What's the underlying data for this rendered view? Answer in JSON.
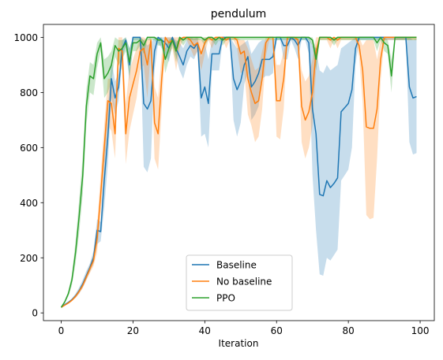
{
  "chart_data": {
    "type": "line",
    "title": "pendulum",
    "xlabel": "Iteration",
    "ylabel": "",
    "xlim": [
      -4.95,
      103.95
    ],
    "ylim": [
      -28,
      1047
    ],
    "xticks": [
      0,
      20,
      40,
      60,
      80,
      100
    ],
    "yticks": [
      0,
      200,
      400,
      600,
      800,
      1000
    ],
    "grid": false,
    "legend_position": "lower center",
    "x": [
      0,
      1,
      2,
      3,
      4,
      5,
      6,
      7,
      8,
      9,
      10,
      11,
      12,
      13,
      14,
      15,
      16,
      17,
      18,
      19,
      20,
      21,
      22,
      23,
      24,
      25,
      26,
      27,
      28,
      29,
      30,
      31,
      32,
      33,
      34,
      35,
      36,
      37,
      38,
      39,
      40,
      41,
      42,
      43,
      44,
      45,
      46,
      47,
      48,
      49,
      50,
      51,
      52,
      53,
      54,
      55,
      56,
      57,
      58,
      59,
      60,
      61,
      62,
      63,
      64,
      65,
      66,
      67,
      68,
      69,
      70,
      71,
      72,
      73,
      74,
      75,
      76,
      77,
      78,
      79,
      80,
      81,
      82,
      83,
      84,
      85,
      86,
      87,
      88,
      89,
      90,
      91,
      92,
      93,
      94,
      95,
      96,
      97,
      98,
      99
    ],
    "series": [
      {
        "name": "Baseline",
        "color": "#1f77b4",
        "values": [
          20,
          30,
          38,
          48,
          62,
          80,
          105,
          135,
          165,
          200,
          300,
          295,
          480,
          640,
          850,
          780,
          820,
          960,
          990,
          900,
          1000,
          1000,
          1000,
          760,
          740,
          770,
          950,
          1000,
          990,
          980,
          960,
          1000,
          960,
          930,
          900,
          950,
          970,
          960,
          980,
          780,
          820,
          760,
          940,
          940,
          940,
          1000,
          1000,
          1000,
          850,
          810,
          840,
          900,
          930,
          820,
          840,
          870,
          920,
          920,
          920,
          930,
          1000,
          1000,
          970,
          970,
          1000,
          990,
          970,
          1000,
          1000,
          980,
          740,
          650,
          430,
          425,
          480,
          455,
          470,
          490,
          730,
          745,
          760,
          810,
          960,
          1000,
          1000,
          1000,
          1000,
          1000,
          1000,
          1000,
          1000,
          1000,
          1000,
          1000,
          1000,
          1000,
          1000,
          820,
          780,
          785
        ],
        "band_low": [
          20,
          28,
          35,
          45,
          55,
          70,
          92,
          120,
          150,
          180,
          250,
          260,
          380,
          540,
          780,
          720,
          770,
          920,
          970,
          840,
          990,
          990,
          990,
          530,
          510,
          560,
          880,
          980,
          960,
          940,
          910,
          980,
          930,
          880,
          850,
          900,
          930,
          920,
          950,
          640,
          650,
          600,
          880,
          880,
          880,
          990,
          990,
          990,
          700,
          640,
          690,
          830,
          870,
          700,
          720,
          750,
          850,
          860,
          860,
          870,
          990,
          990,
          920,
          920,
          990,
          960,
          920,
          990,
          990,
          940,
          500,
          300,
          140,
          135,
          200,
          190,
          210,
          230,
          480,
          500,
          520,
          600,
          900,
          990,
          990,
          990,
          990,
          990,
          990,
          990,
          990,
          990,
          990,
          990,
          990,
          990,
          990,
          620,
          575,
          580
        ],
        "band_high": [
          22,
          32,
          41,
          52,
          70,
          92,
          120,
          152,
          180,
          225,
          340,
          330,
          580,
          740,
          920,
          840,
          870,
          990,
          1000,
          960,
          1000,
          1000,
          1000,
          990,
          970,
          980,
          1000,
          1000,
          1000,
          1000,
          1000,
          1000,
          990,
          980,
          960,
          990,
          1000,
          995,
          1000,
          930,
          980,
          920,
          990,
          990,
          990,
          1000,
          1000,
          1000,
          980,
          960,
          970,
          980,
          990,
          940,
          960,
          980,
          990,
          990,
          990,
          990,
          1000,
          1000,
          1000,
          1000,
          1000,
          1000,
          1000,
          1000,
          1000,
          1000,
          970,
          960,
          880,
          870,
          900,
          880,
          890,
          900,
          960,
          970,
          980,
          990,
          1000,
          1000,
          1000,
          1000,
          1000,
          1000,
          1000,
          1000,
          1000,
          1000,
          1000,
          1000,
          1000,
          1000,
          1000,
          1000,
          990,
          995
        ]
      },
      {
        "name": "No baseline",
        "color": "#ff7f0e",
        "values": [
          20,
          28,
          36,
          46,
          60,
          78,
          100,
          130,
          160,
          190,
          270,
          430,
          600,
          770,
          760,
          650,
          960,
          950,
          650,
          780,
          830,
          880,
          950,
          960,
          900,
          990,
          690,
          650,
          850,
          1000,
          980,
          990,
          950,
          990,
          1000,
          1000,
          990,
          970,
          980,
          940,
          980,
          1000,
          990,
          1000,
          1000,
          1000,
          990,
          1000,
          1000,
          990,
          940,
          950,
          850,
          800,
          760,
          770,
          850,
          980,
          1000,
          1000,
          770,
          770,
          850,
          1000,
          1000,
          1000,
          990,
          750,
          700,
          730,
          800,
          950,
          1000,
          1000,
          1000,
          990,
          1000,
          990,
          1000,
          1000,
          1000,
          1000,
          1000,
          970,
          880,
          675,
          670,
          670,
          740,
          920,
          1000,
          1000,
          1000,
          1000,
          1000,
          1000,
          1000,
          1000,
          1000,
          1000
        ],
        "band_low": [
          20,
          26,
          33,
          42,
          54,
          70,
          90,
          118,
          145,
          170,
          220,
          360,
          520,
          680,
          660,
          560,
          900,
          880,
          540,
          660,
          720,
          780,
          880,
          900,
          780,
          960,
          560,
          520,
          740,
          990,
          940,
          960,
          880,
          960,
          990,
          990,
          960,
          930,
          950,
          880,
          940,
          990,
          960,
          990,
          990,
          990,
          960,
          990,
          990,
          960,
          870,
          880,
          720,
          680,
          620,
          640,
          740,
          930,
          990,
          990,
          640,
          630,
          740,
          990,
          990,
          990,
          960,
          620,
          560,
          600,
          680,
          880,
          990,
          990,
          990,
          960,
          990,
          960,
          990,
          990,
          990,
          990,
          990,
          930,
          760,
          355,
          340,
          345,
          560,
          840,
          990,
          990,
          990,
          990,
          990,
          990,
          990,
          990,
          990,
          990
        ],
        "band_high": [
          22,
          30,
          39,
          50,
          66,
          86,
          110,
          142,
          175,
          210,
          320,
          500,
          680,
          850,
          850,
          750,
          1000,
          1000,
          760,
          880,
          920,
          960,
          1000,
          1000,
          990,
          1000,
          820,
          780,
          940,
          1000,
          1000,
          1000,
          1000,
          1000,
          1000,
          1000,
          1000,
          1000,
          1000,
          990,
          1000,
          1000,
          1000,
          1000,
          1000,
          1000,
          1000,
          1000,
          1000,
          1000,
          990,
          990,
          960,
          920,
          880,
          890,
          950,
          1000,
          1000,
          1000,
          900,
          900,
          950,
          1000,
          1000,
          1000,
          1000,
          880,
          840,
          860,
          920,
          1000,
          1000,
          1000,
          1000,
          1000,
          1000,
          1000,
          1000,
          1000,
          1000,
          1000,
          1000,
          1000,
          970,
          990,
          990,
          990,
          920,
          990,
          1000,
          1000,
          1000,
          1000,
          1000,
          1000,
          1000,
          1000,
          1000,
          1000
        ]
      },
      {
        "name": "PPO",
        "color": "#2ca02c",
        "values": [
          20,
          40,
          70,
          120,
          220,
          350,
          500,
          750,
          860,
          850,
          940,
          980,
          850,
          870,
          900,
          970,
          950,
          960,
          980,
          910,
          980,
          980,
          990,
          970,
          1000,
          1000,
          1000,
          990,
          990,
          920,
          960,
          990,
          950,
          1000,
          990,
          1000,
          1000,
          1000,
          1000,
          1000,
          990,
          1000,
          1000,
          990,
          1000,
          990,
          1000,
          1000,
          1000,
          1000,
          1000,
          1000,
          1000,
          1000,
          1000,
          1000,
          1000,
          1000,
          1000,
          1000,
          1000,
          1000,
          1000,
          1000,
          1000,
          1000,
          1000,
          1000,
          1000,
          1000,
          990,
          920,
          1000,
          1000,
          1000,
          1000,
          990,
          1000,
          1000,
          1000,
          1000,
          1000,
          1000,
          1000,
          1000,
          1000,
          1000,
          1000,
          980,
          1000,
          980,
          970,
          860,
          1000,
          1000,
          1000,
          1000,
          1000,
          1000,
          1000
        ],
        "band_low": [
          19,
          35,
          60,
          100,
          180,
          290,
          430,
          680,
          800,
          790,
          890,
          950,
          780,
          800,
          840,
          930,
          900,
          920,
          950,
          860,
          950,
          950,
          970,
          940,
          990,
          990,
          990,
          970,
          970,
          870,
          920,
          970,
          910,
          990,
          970,
          990,
          990,
          990,
          990,
          990,
          970,
          990,
          990,
          970,
          990,
          970,
          990,
          990,
          990,
          990,
          990,
          990,
          990,
          990,
          990,
          990,
          990,
          990,
          990,
          990,
          990,
          990,
          990,
          990,
          990,
          990,
          990,
          990,
          990,
          990,
          970,
          880,
          990,
          990,
          990,
          990,
          970,
          990,
          990,
          990,
          990,
          990,
          990,
          990,
          990,
          990,
          990,
          990,
          950,
          990,
          950,
          940,
          800,
          990,
          990,
          990,
          990,
          990,
          990,
          990
        ],
        "band_high": [
          21,
          45,
          80,
          140,
          260,
          410,
          570,
          810,
          910,
          900,
          980,
          1000,
          920,
          930,
          950,
          1000,
          990,
          990,
          1000,
          960,
          1000,
          1000,
          1000,
          990,
          1000,
          1000,
          1000,
          1000,
          1000,
          960,
          990,
          1000,
          980,
          1000,
          1000,
          1000,
          1000,
          1000,
          1000,
          1000,
          1000,
          1000,
          1000,
          1000,
          1000,
          1000,
          1000,
          1000,
          1000,
          1000,
          1000,
          1000,
          1000,
          1000,
          1000,
          1000,
          1000,
          1000,
          1000,
          1000,
          1000,
          1000,
          1000,
          1000,
          1000,
          1000,
          1000,
          1000,
          1000,
          1000,
          1000,
          960,
          1000,
          1000,
          1000,
          1000,
          1000,
          1000,
          1000,
          1000,
          1000,
          1000,
          1000,
          1000,
          1000,
          1000,
          1000,
          1000,
          1000,
          1000,
          1000,
          990,
          920,
          1000,
          1000,
          1000,
          1000,
          1000,
          1000,
          1000
        ]
      }
    ]
  }
}
